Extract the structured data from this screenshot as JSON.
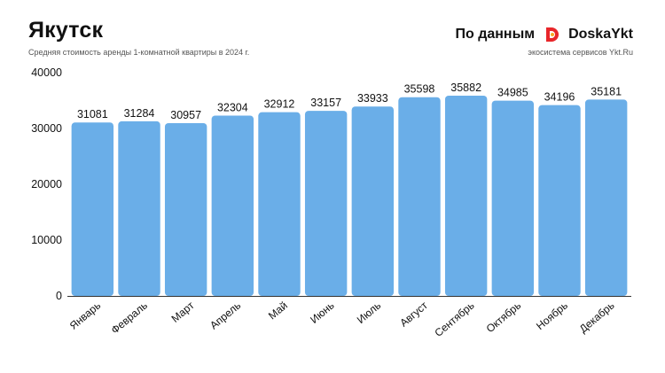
{
  "header": {
    "title": "Якутск",
    "subtitle": "Средняя стоимость аренды 1-комнатной квартиры в 2024 г."
  },
  "brand": {
    "prefix": "По данным",
    "name": "DoskaYkt",
    "tagline": "экосистема сервисов Ykt.Ru",
    "logo_colors": [
      "#e8262a",
      "#f7a823"
    ]
  },
  "colors": {
    "bar": "#6aaee8",
    "grid": "#e6e6e6",
    "axis": "#333333",
    "text": "#111111"
  },
  "chart_data": {
    "type": "bar",
    "title": "Якутск",
    "subtitle": "Средняя стоимость аренды 1-комнатной квартиры в 2024 г.",
    "categories": [
      "Январь",
      "Февраль",
      "Март",
      "Апрель",
      "Май",
      "Июнь",
      "Июль",
      "Август",
      "Сентябрь",
      "Октябрь",
      "Ноябрь",
      "Декабрь"
    ],
    "values": [
      31081,
      31284,
      30957,
      32304,
      32912,
      33157,
      33933,
      35598,
      35882,
      34985,
      34196,
      35181
    ],
    "y_ticks": [
      0,
      10000,
      20000,
      30000,
      40000
    ],
    "ylim": [
      0,
      40000
    ],
    "xlabel": "",
    "ylabel": "",
    "grid": false,
    "legend": "none",
    "data_labels": true
  }
}
